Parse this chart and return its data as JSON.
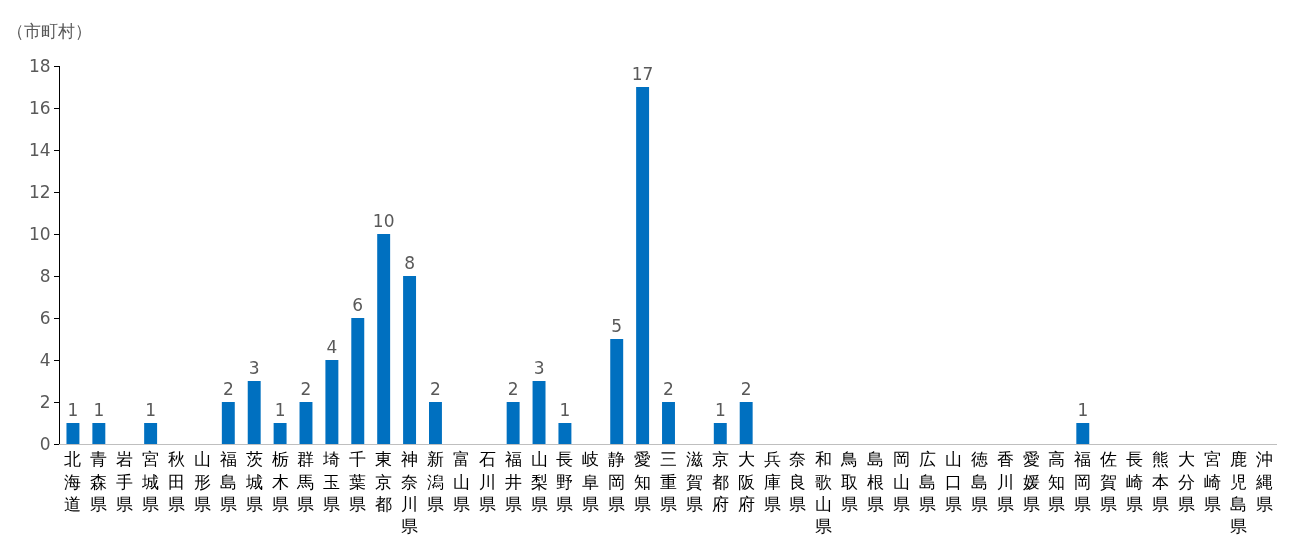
{
  "chart_data": {
    "type": "bar",
    "ylabel": "（市町村）",
    "categories": [
      "北海道",
      "青森県",
      "岩手県",
      "宮城県",
      "秋田県",
      "山形県",
      "福島県",
      "茨城県",
      "栃木県",
      "群馬県",
      "埼玉県",
      "千葉県",
      "東京都",
      "神奈川県",
      "新潟県",
      "富山県",
      "石川県",
      "福井県",
      "山梨県",
      "長野県",
      "岐阜県",
      "静岡県",
      "愛知県",
      "三重県",
      "滋賀県",
      "京都府",
      "大阪府",
      "兵庫県",
      "奈良県",
      "和歌山県",
      "鳥取県",
      "島根県",
      "岡山県",
      "広島県",
      "山口県",
      "徳島県",
      "香川県",
      "愛媛県",
      "高知県",
      "福岡県",
      "佐賀県",
      "長崎県",
      "熊本県",
      "大分県",
      "宮崎県",
      "鹿児島県",
      "沖縄県"
    ],
    "values": [
      1,
      1,
      0,
      1,
      0,
      0,
      2,
      3,
      1,
      2,
      4,
      6,
      10,
      8,
      2,
      0,
      0,
      2,
      3,
      1,
      0,
      5,
      17,
      2,
      0,
      1,
      2,
      0,
      0,
      0,
      0,
      0,
      0,
      0,
      0,
      0,
      0,
      0,
      0,
      1,
      0,
      0,
      0,
      0,
      0,
      0,
      0
    ],
    "value_labels": [
      "1",
      "1",
      null,
      "1",
      null,
      null,
      "2",
      "3",
      "1",
      "2",
      "4",
      "6",
      "10",
      "8",
      "2",
      null,
      null,
      "2",
      "3",
      "1",
      null,
      "5",
      "17",
      "2",
      null,
      "1",
      "2",
      null,
      null,
      null,
      null,
      null,
      null,
      null,
      null,
      null,
      null,
      null,
      null,
      "1",
      null,
      null,
      null,
      null,
      null,
      null,
      null
    ],
    "color": "#0070c0",
    "ylim": [
      0,
      18
    ],
    "yticks": [
      0,
      2,
      4,
      6,
      8,
      10,
      12,
      14,
      16,
      18
    ],
    "grid": false
  }
}
